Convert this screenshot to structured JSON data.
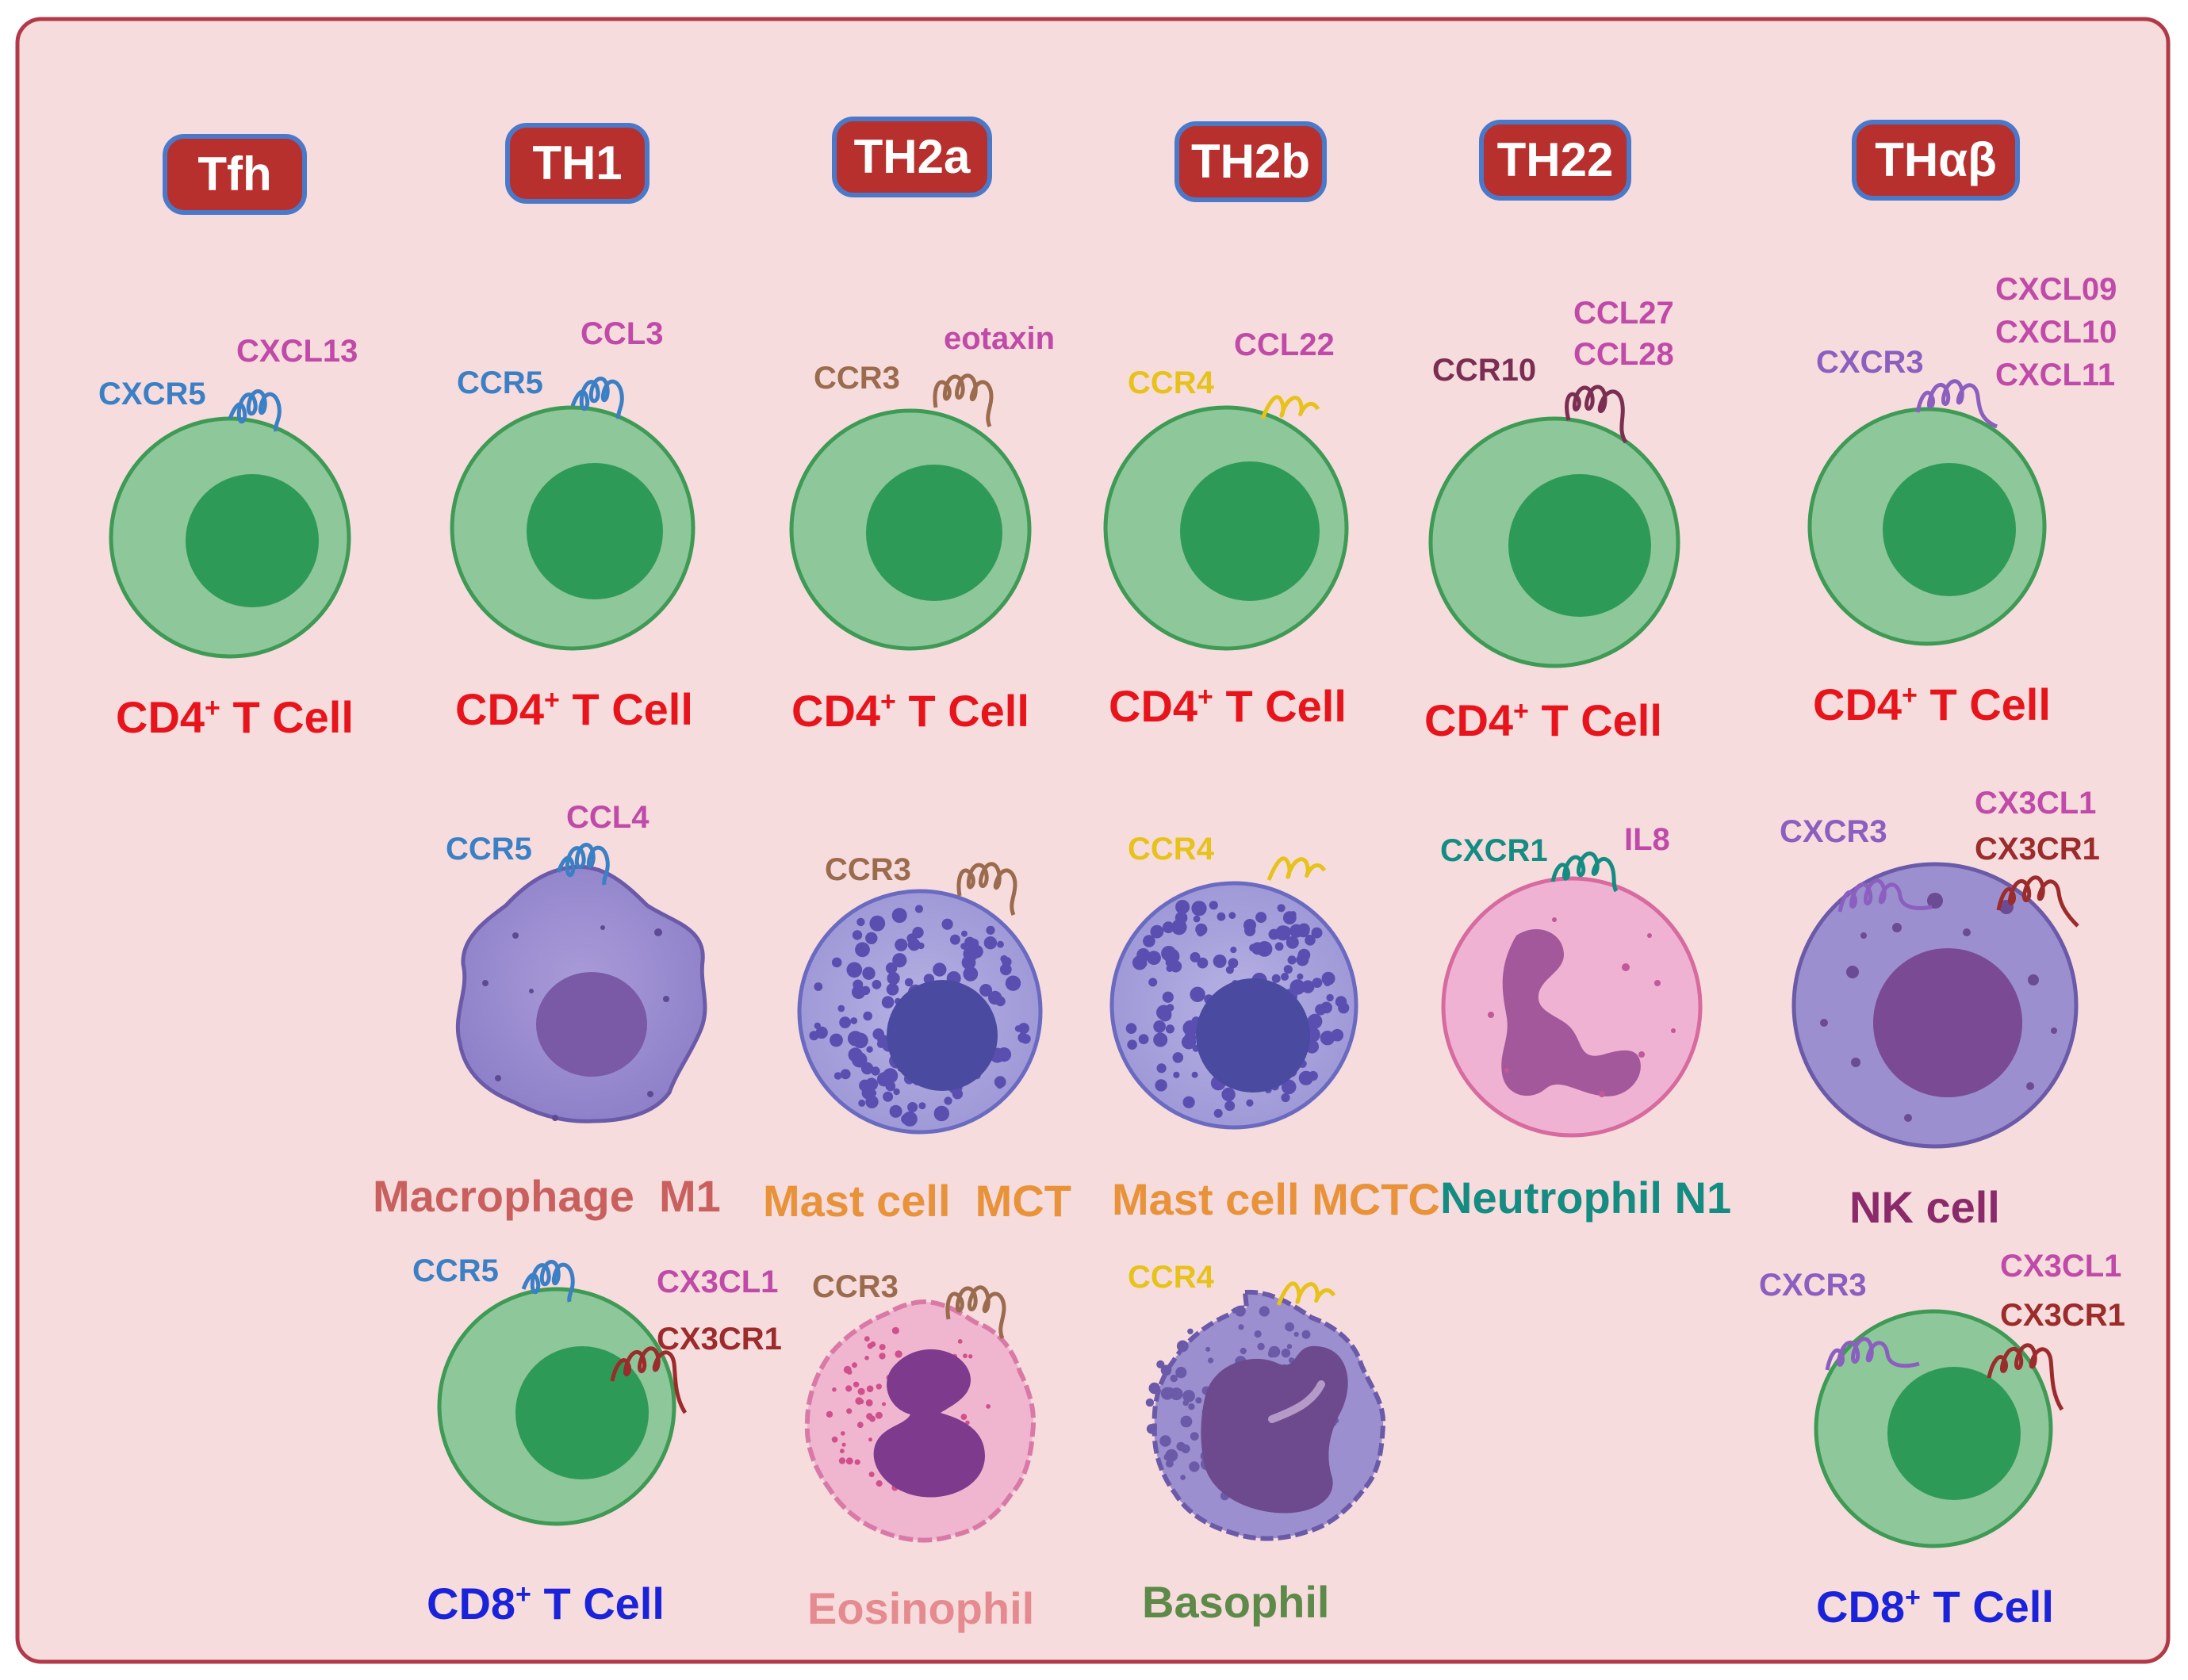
{
  "title": "T helper subsets and associated immune cells with chemokine receptors and ligands",
  "colors": {
    "background": "#f7dcde",
    "border": "#b23a48",
    "header_fill": "#b8302e",
    "header_stroke": "#4a79c9",
    "cd4_label": "#e8141b",
    "cd8_label": "#1a23d9",
    "blue_receptor": "#3b7fc4",
    "pink_ligand": "#c04aa8",
    "brown_receptor": "#9b6b4e",
    "yellow_receptor": "#e6c21a",
    "maroon_receptor": "#7a2f52",
    "purple_receptor": "#8b5fbf",
    "teal_receptor": "#148c82",
    "darkred_receptor": "#9c2b2b"
  },
  "headers": [
    "Tfh",
    "TH1",
    "TH2a",
    "TH2b",
    "TH22",
    "THαβ"
  ],
  "cells": {
    "tfh_cd4": {
      "label": "CD4",
      "sup": "+",
      "rest": " T Cell",
      "receptor": "CXCR5",
      "ligands": [
        "CXCL13"
      ]
    },
    "th1_cd4": {
      "label": "CD4",
      "sup": "+",
      "rest": " T Cell",
      "receptor": "CCR5",
      "ligands": [
        "CCL3"
      ]
    },
    "th2a_cd4": {
      "label": "CD4",
      "sup": "+",
      "rest": " T Cell",
      "receptor": "CCR3",
      "ligands": [
        "eotaxin"
      ]
    },
    "th2b_cd4": {
      "label": "CD4",
      "sup": "+",
      "rest": " T Cell",
      "receptor": "CCR4",
      "ligands": [
        "CCL22"
      ]
    },
    "th22_cd4": {
      "label": "CD4",
      "sup": "+",
      "rest": " T Cell",
      "receptor": "CCR10",
      "ligands": [
        "CCL27",
        "CCL28"
      ]
    },
    "thab_cd4": {
      "label": "CD4",
      "sup": "+",
      "rest": " T Cell",
      "receptor": "CXCR3",
      "ligands": [
        "CXCL09",
        "CXCL10",
        "CXCL11"
      ]
    },
    "macrophage": {
      "label": "Macrophage  M1",
      "receptor": "CCR5",
      "ligands": [
        "CCL4"
      ]
    },
    "mast_mct": {
      "label": "Mast cell  MCT",
      "receptor": "CCR3"
    },
    "mast_mctc": {
      "label": "Mast cell MCTC",
      "receptor": "CCR4"
    },
    "neutrophil": {
      "label": "Neutrophil N1",
      "receptor": "CXCR1",
      "ligands": [
        "IL8"
      ]
    },
    "nk": {
      "label": "NK cell",
      "receptor": "CXCR3",
      "ligands": [
        "CX3CL1"
      ],
      "receptor2": "CX3CR1"
    },
    "th1_cd8": {
      "label": "CD8",
      "sup": "+",
      "rest": " T Cell",
      "receptor": "CCR5",
      "ligands": [
        "CX3CL1"
      ],
      "receptor2": "CX3CR1"
    },
    "eosinophil": {
      "label": "Eosinophil",
      "receptor": "CCR3"
    },
    "basophil": {
      "label": "Basophil",
      "receptor": "CCR4"
    },
    "thab_cd8": {
      "label": "CD8",
      "sup": "+",
      "rest": " T Cell",
      "receptor": "CXCR3",
      "ligands": [
        "CX3CL1"
      ],
      "receptor2": "CX3CR1"
    }
  }
}
